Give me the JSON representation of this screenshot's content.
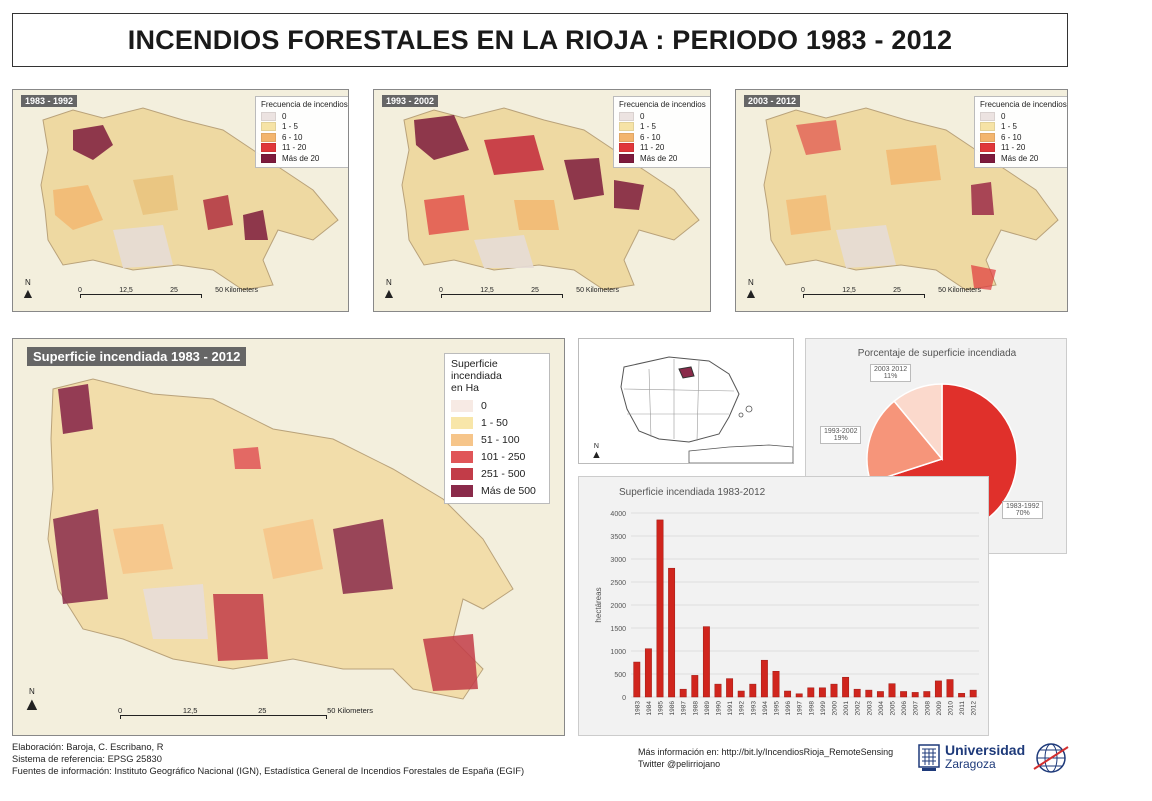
{
  "title": "INCENDIOS FORESTALES EN LA RIOJA : PERIODO 1983 - 2012",
  "small_maps": [
    {
      "period": "1983 - 1992",
      "legend_title": "Frecuencia de incendios"
    },
    {
      "period": "1993 - 2002",
      "legend_title": "Frecuencia de incendios"
    },
    {
      "period": "2003 - 2012",
      "legend_title": "Frecuencia de incendios"
    }
  ],
  "frequency_classes": [
    {
      "label": "0",
      "color": "#ece3e1"
    },
    {
      "label": "1 - 5",
      "color": "#f6e3a6"
    },
    {
      "label": "6 - 10",
      "color": "#f3b56e"
    },
    {
      "label": "11 - 20",
      "color": "#e0373a"
    },
    {
      "label": "Más de 20",
      "color": "#7d1a3c"
    }
  ],
  "scale": {
    "ticks": [
      "0",
      "12,5",
      "25",
      "50 Kilometers"
    ]
  },
  "north_label": "N",
  "big_map": {
    "title": "Superficie incendiada 1983 - 2012",
    "legend_title_1": "Superficie incendiada",
    "legend_title_2": "en Ha",
    "classes": [
      {
        "label": "0",
        "color": "#f7eae4"
      },
      {
        "label": "1 - 50",
        "color": "#f8e6a9"
      },
      {
        "label": "51 - 100",
        "color": "#f6c58a"
      },
      {
        "label": "101 - 250",
        "color": "#e05558"
      },
      {
        "label": "251 - 500",
        "color": "#c23c48"
      },
      {
        "label": "Más de 500",
        "color": "#8a2a4a"
      }
    ]
  },
  "pie": {
    "title": "Porcentaje de superficie incendiada",
    "slices": [
      {
        "period": "1983-1992",
        "percent": 70,
        "label_pct": "70%",
        "color": "#e0302b"
      },
      {
        "period": "1993-2002",
        "percent": 19,
        "label_pct": "19%",
        "color": "#f6957a"
      },
      {
        "period": "2003 2012",
        "percent": 11,
        "label_pct": "11%",
        "color": "#fbd9cc"
      }
    ]
  },
  "chart_data": {
    "type": "bar",
    "title": "Superficie incendiada 1983-2012",
    "ylabel": "hectáreas",
    "ylim": [
      0,
      4000
    ],
    "yticks": [
      0,
      500,
      1000,
      1500,
      2000,
      2500,
      3000,
      3500,
      4000
    ],
    "grid": true,
    "bar_color": "#d0251d",
    "categories": [
      "1983",
      "1984",
      "1985",
      "1986",
      "1987",
      "1988",
      "1989",
      "1990",
      "1991",
      "1992",
      "1993",
      "1994",
      "1995",
      "1996",
      "1997",
      "1998",
      "1999",
      "2000",
      "2001",
      "2002",
      "2003",
      "2004",
      "2005",
      "2006",
      "2007",
      "2008",
      "2009",
      "2010",
      "2011",
      "2012"
    ],
    "values": [
      760,
      1050,
      3850,
      2800,
      170,
      470,
      1530,
      280,
      400,
      130,
      280,
      800,
      560,
      130,
      70,
      200,
      200,
      280,
      430,
      170,
      150,
      120,
      290,
      120,
      100,
      120,
      350,
      380,
      80,
      150
    ]
  },
  "footer": {
    "line1": "Elaboración: Baroja, C. Escribano, R",
    "line2": "Sistema de referencia: EPSG 25830",
    "line3": "Fuentes de información: Instituto Geográfico Nacional (IGN), Estadística General de Incendios Forestales de España (EGIF)",
    "info": "Más información en: http://bit.ly/IncendiosRioja_RemoteSensing",
    "twitter": "Twitter @pelirriojano"
  },
  "logo": {
    "name1": "Universidad",
    "name2": "Zaragoza"
  }
}
